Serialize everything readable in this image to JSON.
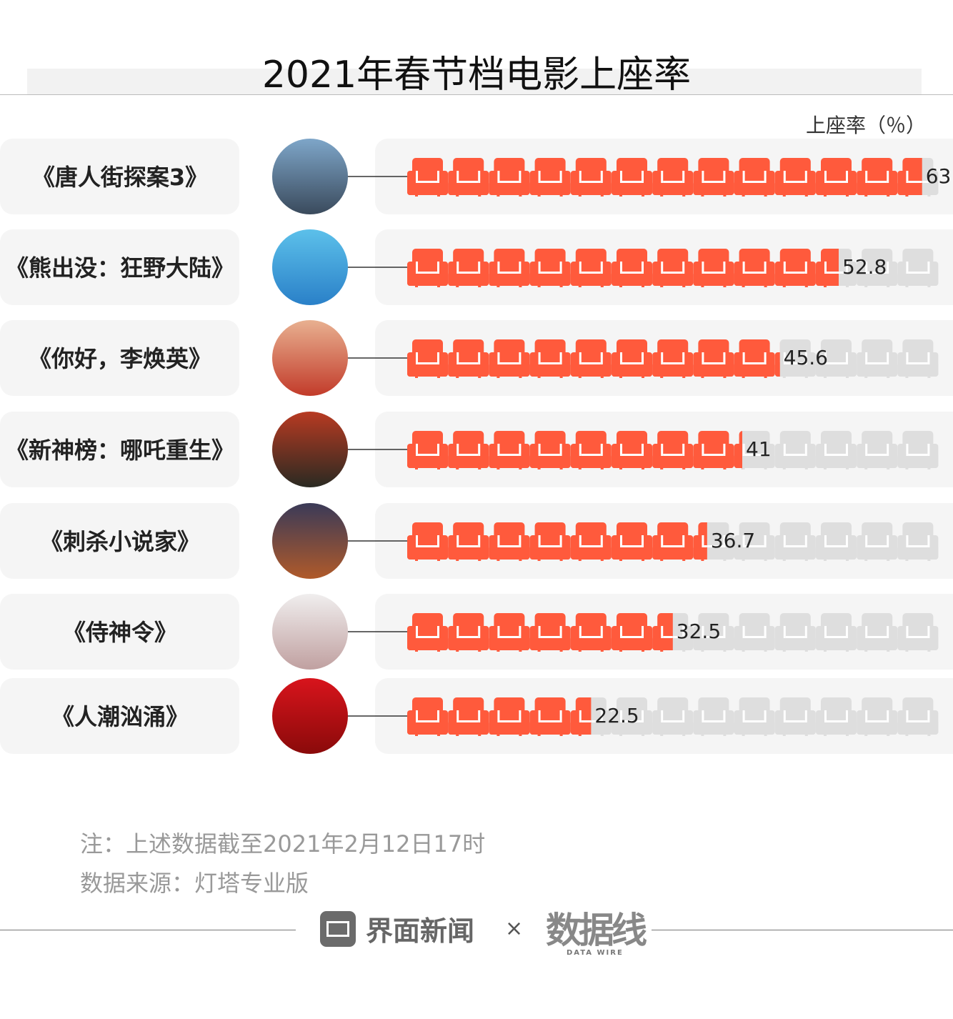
{
  "chart_data": {
    "type": "bar",
    "title": "2021年春节档电影上座率",
    "unit_label": "上座率（％）",
    "categories": [
      "《唐人街探案3》",
      "《熊出没：狂野大陆》",
      "《你好，李焕英》",
      "《新神榜：哪吒重生》",
      "《刺杀小说家》",
      "《侍神令》",
      "《人潮汹涌》"
    ],
    "values": [
      63,
      52.8,
      45.6,
      41,
      36.7,
      32.5,
      22.5
    ],
    "value_labels": [
      "63",
      "52.8",
      "45.6",
      "41",
      "36.7",
      "32.5",
      "22.5"
    ],
    "xlim": [
      0,
      65
    ],
    "icon": "armchair-icon",
    "icon_unit": 5,
    "colors": {
      "filled": "#ff5a3c",
      "empty": "#dedede",
      "band": "#f5f5f5"
    },
    "poster_colors": [
      [
        "#7ea6c9",
        "#3a4a5c"
      ],
      [
        "#5cc0ea",
        "#2a80c8"
      ],
      [
        "#e8b090",
        "#c23b2a"
      ],
      [
        "#b83a22",
        "#2a2a22"
      ],
      [
        "#3a3a58",
        "#b05a2a"
      ],
      [
        "#f0eeee",
        "#c0a0a0"
      ],
      [
        "#d8141c",
        "#8a0a0a"
      ]
    ]
  },
  "notes": {
    "note": "注：上述数据截至2021年2月12日17时",
    "source": "数据来源：灯塔专业版"
  },
  "footer": {
    "brand": "界面新闻",
    "times": "×",
    "partner": "数据线",
    "partner_sub": "DATA WIRE"
  }
}
